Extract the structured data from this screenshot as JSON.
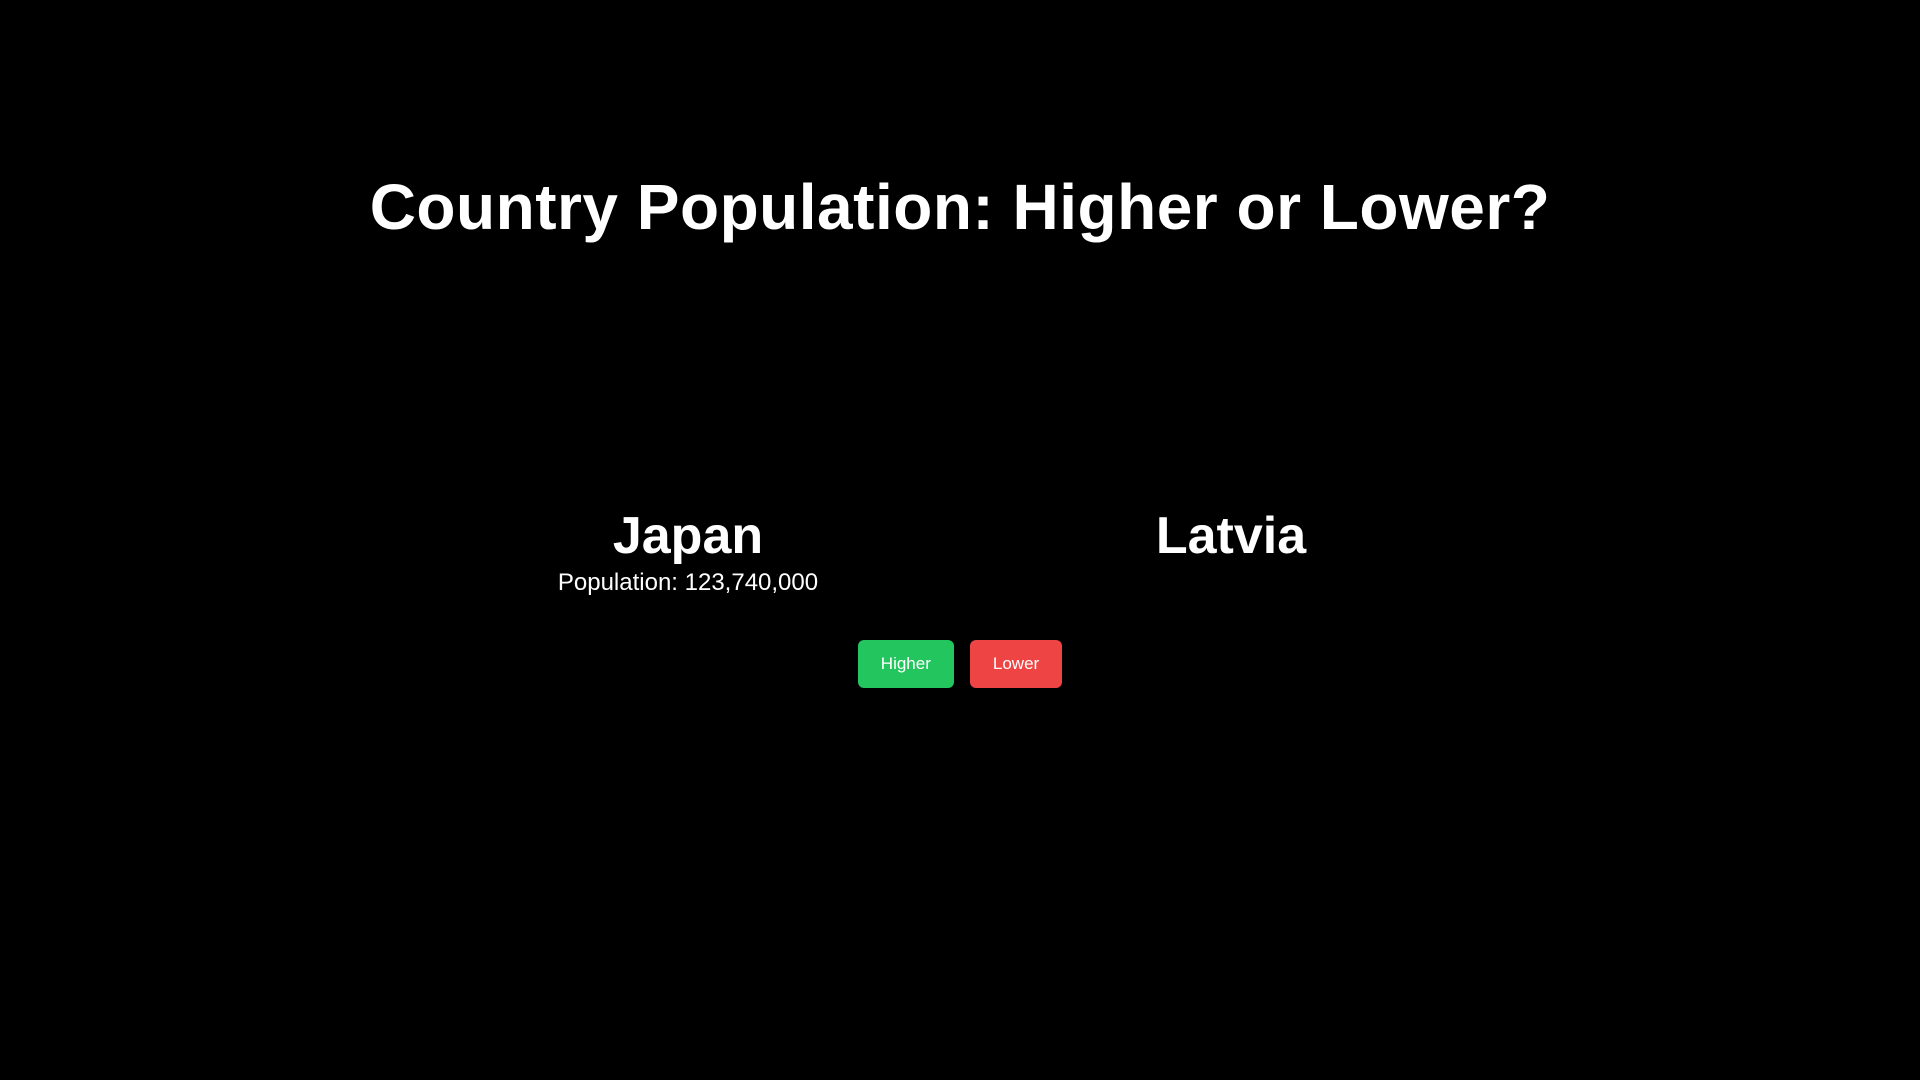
{
  "title": "Country Population: Higher or Lower?",
  "current_country": {
    "name": "Japan",
    "population_label": "Population: 123,740,000"
  },
  "next_country": {
    "name": "Latvia"
  },
  "buttons": {
    "higher_label": "Higher",
    "lower_label": "Lower"
  },
  "colors": {
    "background": "#000000",
    "text": "#ffffff",
    "higher": "#22c55e",
    "lower": "#ef4444"
  }
}
